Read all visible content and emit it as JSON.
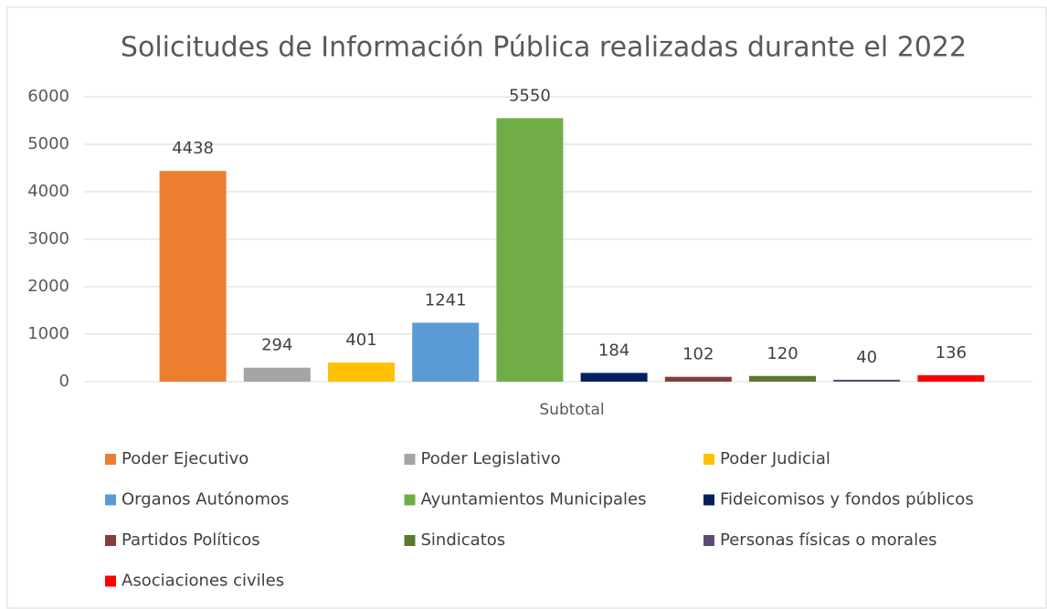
{
  "chart_data": {
    "type": "bar",
    "title": "Solicitudes de Información Pública realizadas durante el 2022",
    "categories": [
      "Subtotal"
    ],
    "series": [
      {
        "name": "Poder Ejecutivo",
        "color": "#ed7d31",
        "values": [
          4438
        ]
      },
      {
        "name": "Poder Legislativo",
        "color": "#a5a5a5",
        "values": [
          294
        ]
      },
      {
        "name": "Poder Judicial",
        "color": "#ffc000",
        "values": [
          401
        ]
      },
      {
        "name": "Organos Autónomos",
        "color": "#5b9bd5",
        "values": [
          1241
        ]
      },
      {
        "name": "Ayuntamientos Municipales",
        "color": "#70ad47",
        "values": [
          5550
        ]
      },
      {
        "name": "Fideicomisos y fondos públicos",
        "color": "#002060",
        "values": [
          184
        ]
      },
      {
        "name": "Partidos Políticos",
        "color": "#843c3c",
        "values": [
          102
        ]
      },
      {
        "name": "Sindicatos",
        "color": "#5a7a2e",
        "values": [
          120
        ]
      },
      {
        "name": "Personas físicas o morales",
        "color": "#5c4a7a",
        "values": [
          40
        ]
      },
      {
        "name": "Asociaciones civiles",
        "color": "#ff0000",
        "values": [
          136
        ]
      }
    ],
    "ylim": [
      0,
      6000
    ],
    "yticks": [
      0,
      1000,
      2000,
      3000,
      4000,
      5000,
      6000
    ],
    "grid": true,
    "legend": "bottom"
  }
}
